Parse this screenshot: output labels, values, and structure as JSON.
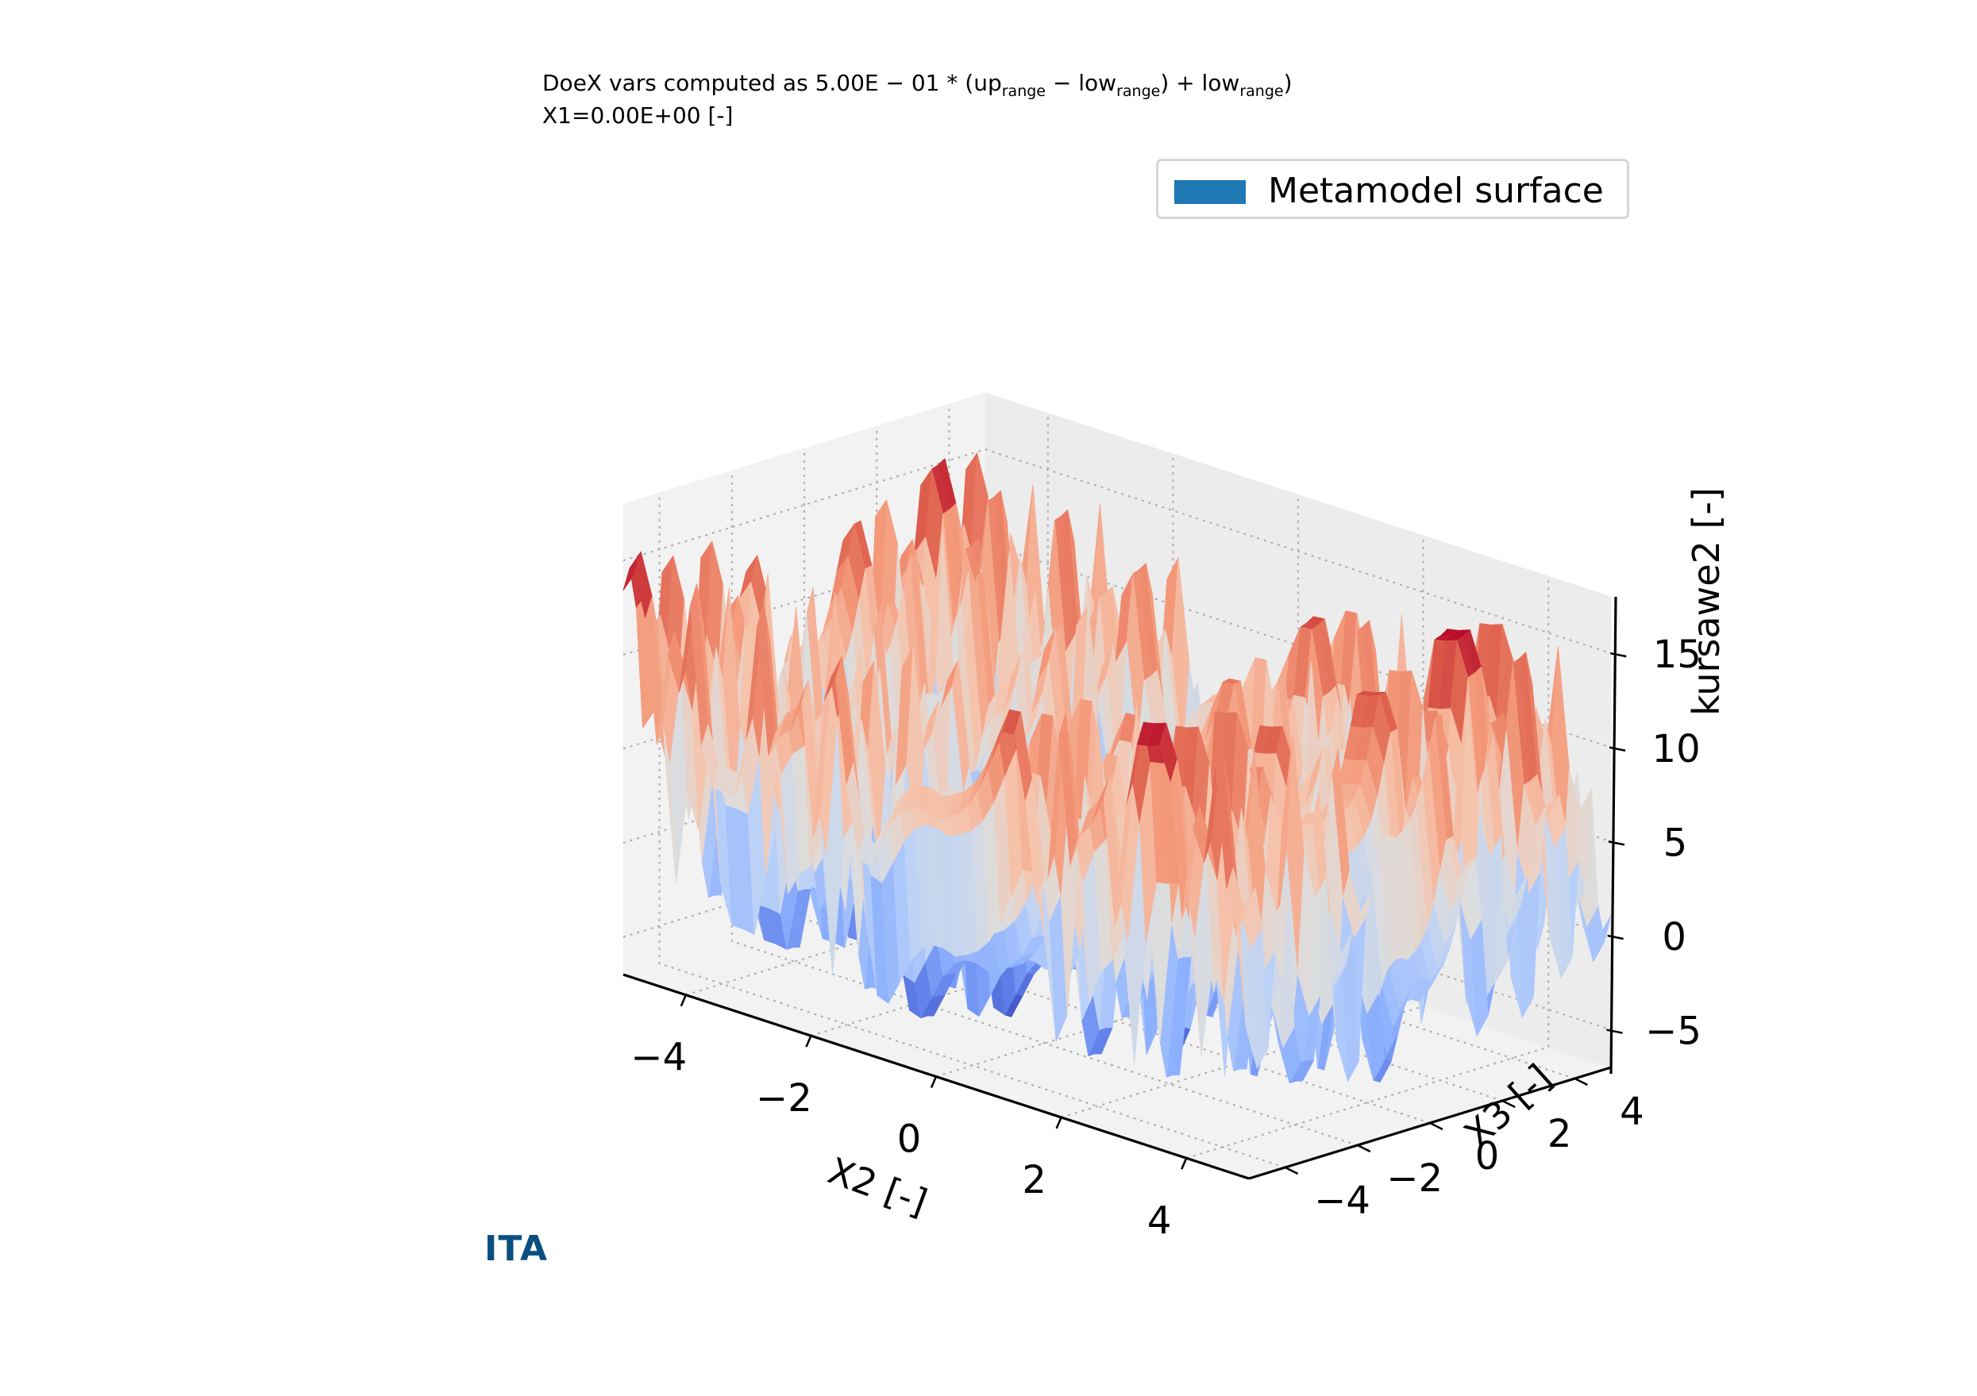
{
  "header": {
    "line1_prefix": "DoeX vars computed as 5.00E − 01 * (up",
    "line1_sub1": "range",
    "line1_mid": " − low",
    "line1_sub2": "range",
    "line1_mid2": ") + low",
    "line1_sub3": "range",
    "line1_suffix": ")",
    "line2": "X1=0.00E+00 [-]"
  },
  "logo_text": "ITA",
  "chart_data": {
    "type": "surface3d",
    "title": "",
    "xlabel": "X2 [-]",
    "ylabel": "X3 [-]",
    "zlabel": "kursawe2 [-]",
    "xlim": [
      -5,
      5
    ],
    "ylim": [
      -5,
      5
    ],
    "zlim": [
      -7,
      18
    ],
    "x_ticks": [
      -4,
      -2,
      0,
      2,
      4
    ],
    "y_ticks": [
      -4,
      -2,
      0,
      2,
      4
    ],
    "z_ticks": [
      -5,
      0,
      5,
      10,
      15
    ],
    "x_tick_labels": [
      "−4",
      "−2",
      "0",
      "2",
      "4"
    ],
    "y_tick_labels": [
      "−4",
      "−2",
      "0",
      "2",
      "4"
    ],
    "z_tick_labels": [
      "−5",
      "0",
      "5",
      "10",
      "15"
    ],
    "grid": true,
    "legend": {
      "placement": "upper-right",
      "entries": [
        {
          "label": "Metamodel surface",
          "color": "#1f77b4"
        }
      ]
    },
    "colormap": "coolwarm",
    "function": "z = |x2|^0.8 + 5*sin(x2^3) + |x3|^0.8 + 5*sin(x3^3)",
    "grid_resolution": 56
  }
}
